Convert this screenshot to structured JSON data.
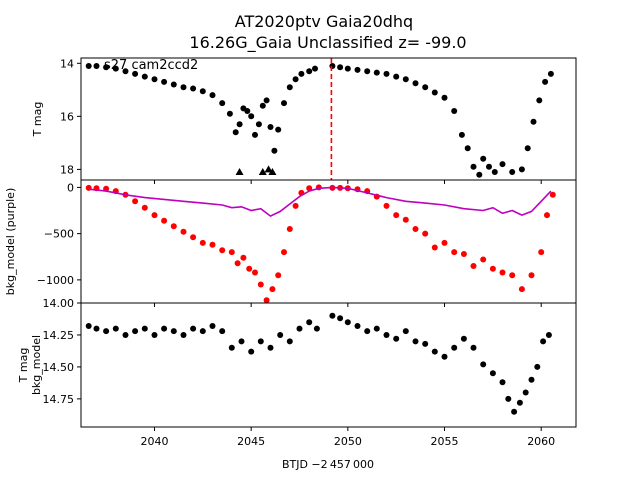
{
  "chart_data": {
    "type": "scatter",
    "title_line1": "AT2020ptv  Gaia20dhq",
    "title_line2": "16.26G_Gaia Unclassified z= -99.0",
    "annotation": "s27 cam2ccd2",
    "xlabel": "BTJD −2 457 000",
    "xlim": [
      2036.2,
      2061.8
    ],
    "xticks": [
      2040,
      2045,
      2050,
      2055,
      2060
    ],
    "marker_line_x": 2049.15,
    "colors": {
      "points": "#000000",
      "red": "#ff0000",
      "purple": "#bf00bf",
      "dashed": "#ff0000"
    },
    "panels": [
      {
        "id": "tmag",
        "ylabel": "T mag",
        "ylim": [
          18.4,
          13.8
        ],
        "yticks": [
          14,
          16,
          18
        ],
        "series": [
          {
            "name": "T mag",
            "style": "points",
            "color": "#000000",
            "x": [
              2036.6,
              2037.0,
              2037.5,
              2038.0,
              2038.5,
              2039.0,
              2039.5,
              2040.0,
              2040.5,
              2041.0,
              2041.5,
              2042.0,
              2042.5,
              2043.0,
              2043.5,
              2043.9,
              2044.2,
              2044.4,
              2044.6,
              2044.8,
              2045.0,
              2045.2,
              2045.4,
              2045.6,
              2045.8,
              2046.0,
              2046.2,
              2046.4,
              2046.7,
              2047.0,
              2047.3,
              2047.6,
              2048.0,
              2048.3,
              2049.2,
              2049.6,
              2050.0,
              2050.5,
              2051.0,
              2051.5,
              2052.0,
              2052.5,
              2053.0,
              2053.5,
              2054.0,
              2054.5,
              2055.0,
              2055.5,
              2055.9,
              2056.2,
              2056.5,
              2056.8,
              2057.0,
              2057.3,
              2057.6,
              2058.0,
              2058.5,
              2059.0,
              2059.3,
              2059.6,
              2059.9,
              2060.2,
              2060.5
            ],
            "y": [
              14.1,
              14.1,
              14.15,
              14.2,
              14.3,
              14.4,
              14.5,
              14.6,
              14.7,
              14.8,
              14.9,
              14.95,
              15.05,
              15.2,
              15.5,
              15.9,
              16.6,
              16.3,
              15.7,
              15.8,
              16.0,
              16.7,
              16.3,
              15.6,
              15.4,
              16.4,
              17.3,
              16.5,
              15.5,
              14.9,
              14.6,
              14.4,
              14.3,
              14.2,
              14.1,
              14.15,
              14.2,
              14.25,
              14.3,
              14.35,
              14.4,
              14.5,
              14.6,
              14.75,
              14.9,
              15.1,
              15.3,
              15.8,
              16.7,
              17.2,
              17.9,
              18.2,
              17.6,
              17.9,
              18.1,
              17.8,
              18.1,
              18.0,
              17.2,
              16.2,
              15.4,
              14.7,
              14.4
            ]
          },
          {
            "name": "T mag (upper limits)",
            "style": "triangles",
            "color": "#000000",
            "x": [
              2044.4,
              2045.6,
              2045.9,
              2046.1
            ],
            "y": [
              18.1,
              18.1,
              18.0,
              18.1
            ]
          }
        ]
      },
      {
        "id": "bkg",
        "ylabel": "bkg_model (purple)",
        "ylim": [
          -1250,
          80
        ],
        "yticks": [
          0,
          -500,
          -1000
        ],
        "series": [
          {
            "name": "red",
            "style": "points",
            "color": "#ff0000",
            "x": [
              2036.6,
              2037.0,
              2037.5,
              2038.0,
              2038.5,
              2039.0,
              2039.5,
              2040.0,
              2040.5,
              2041.0,
              2041.5,
              2042.0,
              2042.5,
              2043.0,
              2043.5,
              2044.0,
              2044.3,
              2044.6,
              2044.9,
              2045.2,
              2045.5,
              2045.8,
              2046.1,
              2046.4,
              2046.7,
              2047.0,
              2047.3,
              2047.6,
              2048.0,
              2048.5,
              2049.2,
              2049.6,
              2050.0,
              2050.5,
              2051.0,
              2051.5,
              2052.0,
              2052.5,
              2053.0,
              2053.5,
              2054.0,
              2054.5,
              2055.0,
              2055.5,
              2056.0,
              2056.5,
              2057.0,
              2057.5,
              2058.0,
              2058.5,
              2059.0,
              2059.5,
              2060.0,
              2060.3,
              2060.6
            ],
            "y": [
              -5,
              -10,
              -15,
              -40,
              -80,
              -150,
              -220,
              -300,
              -360,
              -420,
              -480,
              -540,
              -600,
              -620,
              -680,
              -700,
              -820,
              -760,
              -880,
              -920,
              -1050,
              -1220,
              -1100,
              -950,
              -700,
              -450,
              -200,
              -60,
              -10,
              0,
              -5,
              -5,
              -10,
              -20,
              -40,
              -100,
              -200,
              -300,
              -350,
              -450,
              -500,
              -650,
              -600,
              -700,
              -720,
              -850,
              -780,
              -880,
              -920,
              -950,
              -1100,
              -950,
              -700,
              -300,
              -80
            ]
          },
          {
            "name": "purple",
            "style": "line",
            "color": "#bf00bf",
            "x": [
              2036.6,
              2037.5,
              2038.5,
              2039.5,
              2040.5,
              2041.5,
              2042.5,
              2043.5,
              2044.0,
              2044.5,
              2045.0,
              2045.5,
              2046.0,
              2046.5,
              2047.0,
              2047.5,
              2048.0,
              2048.5,
              2049.2,
              2050.0,
              2051.0,
              2052.0,
              2053.0,
              2054.0,
              2055.0,
              2056.0,
              2057.0,
              2057.5,
              2058.0,
              2058.5,
              2059.0,
              2059.5,
              2060.0,
              2060.5
            ],
            "y": [
              -20,
              -40,
              -80,
              -110,
              -130,
              -150,
              -170,
              -190,
              -220,
              -210,
              -250,
              -230,
              -310,
              -260,
              -180,
              -100,
              -40,
              -10,
              0,
              -10,
              -60,
              -110,
              -150,
              -170,
              -190,
              -230,
              -250,
              -220,
              -280,
              -250,
              -300,
              -260,
              -150,
              -40
            ]
          }
        ]
      },
      {
        "id": "diff",
        "ylabel": "T mag - bkg_model",
        "ylabel_visible": [
          "T mag",
          "bkg_model"
        ],
        "ylim": [
          14.97,
          14.0
        ],
        "yticks": [
          14.0,
          14.25,
          14.5,
          14.75
        ],
        "ytick_labels": [
          "14.00",
          "14.25",
          "14.50",
          "14.75"
        ],
        "series": [
          {
            "name": "T mag - bkg_model",
            "style": "points",
            "color": "#000000",
            "x": [
              2036.6,
              2037.0,
              2037.5,
              2038.0,
              2038.5,
              2039.0,
              2039.5,
              2040.0,
              2040.5,
              2041.0,
              2041.5,
              2042.0,
              2042.5,
              2043.0,
              2043.5,
              2044.0,
              2044.5,
              2045.0,
              2045.5,
              2046.0,
              2046.5,
              2047.0,
              2047.5,
              2048.0,
              2048.4,
              2049.2,
              2049.6,
              2050.0,
              2050.5,
              2051.0,
              2051.5,
              2052.0,
              2052.5,
              2053.0,
              2053.5,
              2054.0,
              2054.5,
              2055.0,
              2055.5,
              2056.0,
              2056.5,
              2057.0,
              2057.5,
              2058.0,
              2058.3,
              2058.6,
              2058.9,
              2059.2,
              2059.5,
              2059.8,
              2060.1,
              2060.4
            ],
            "y": [
              14.18,
              14.2,
              14.22,
              14.2,
              14.25,
              14.22,
              14.2,
              14.25,
              14.2,
              14.22,
              14.25,
              14.2,
              14.22,
              14.18,
              14.22,
              14.35,
              14.3,
              14.38,
              14.3,
              14.35,
              14.25,
              14.3,
              14.2,
              14.15,
              14.2,
              14.1,
              14.12,
              14.15,
              14.18,
              14.22,
              14.2,
              14.25,
              14.28,
              14.22,
              14.3,
              14.32,
              14.38,
              14.42,
              14.35,
              14.28,
              14.35,
              14.48,
              14.55,
              14.62,
              14.75,
              14.85,
              14.78,
              14.7,
              14.6,
              14.5,
              14.3,
              14.25
            ]
          }
        ]
      }
    ]
  }
}
